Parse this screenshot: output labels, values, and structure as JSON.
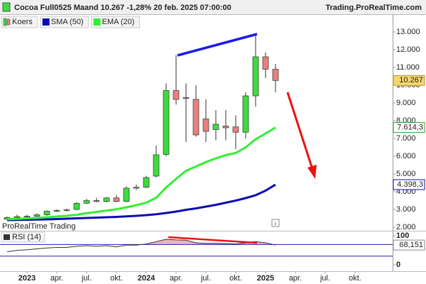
{
  "chart_data": [
    {
      "type": "candlestick",
      "title": "Cocoa Full0525 Maand 10.267 -1,28% 20 feb. 2025 07:00:00",
      "source": "Trading.ProRealTime.com",
      "watermark": "ProRealTime Trading",
      "categories": [
        null,
        null,
        "2023",
        null,
        null,
        "apr.",
        null,
        null,
        "jul.",
        null,
        null,
        "okt.",
        null,
        null,
        "2024",
        null,
        null,
        "apr.",
        null,
        null,
        "jul.",
        null,
        null,
        "okt.",
        null,
        null,
        "2025",
        null,
        null,
        "apr.",
        null,
        null,
        "jul.",
        null,
        null,
        "okt.",
        null,
        null
      ],
      "ylim": [
        1800,
        14000
      ],
      "yticks": [
        {
          "value": 2000,
          "label": "2.000"
        },
        {
          "value": 3000,
          "label": "3.000"
        },
        {
          "value": 4000,
          "label": "4.000"
        },
        {
          "value": 5000,
          "label": "5.000"
        },
        {
          "value": 6000,
          "label": "6.000"
        },
        {
          "value": 7000,
          "label": "7.000"
        },
        {
          "value": 8000,
          "label": "8.000"
        },
        {
          "value": 9000,
          "label": "9.000"
        },
        {
          "value": 10000,
          "label": "10.000"
        },
        {
          "value": 11000,
          "label": "11.000"
        },
        {
          "value": 12000,
          "label": "12.000"
        },
        {
          "value": 13000,
          "label": "13.000"
        }
      ],
      "series": [
        {
          "name": "Koers",
          "type": "candlestick",
          "up_color": "#3ddc3d",
          "down_color": "#e88080",
          "color": "#3ddc3d",
          "label_color": "#f5d76e",
          "open": [
            2450,
            2550,
            2600,
            2620,
            2700,
            2900,
            2950,
            3000,
            3350,
            3500,
            3450,
            3650,
            3450,
            4200,
            4250,
            4880,
            6100,
            9700,
            9300,
            9200,
            8100,
            7500,
            7700,
            7650,
            7350,
            9400,
            11600,
            10900,
            null,
            null,
            null,
            null,
            null,
            null,
            null,
            null,
            null,
            null
          ],
          "high": [
            2600,
            2700,
            2700,
            2780,
            2950,
            3000,
            3050,
            3400,
            3600,
            3650,
            3700,
            3800,
            4300,
            4400,
            4900,
            6600,
            10100,
            11700,
            10100,
            10000,
            9200,
            8600,
            8600,
            8300,
            9600,
            12900,
            11850,
            11200,
            null,
            null,
            null,
            null,
            null,
            null,
            null,
            null,
            null,
            null
          ],
          "low": [
            2400,
            2500,
            2550,
            2580,
            2650,
            2850,
            2880,
            2950,
            3300,
            3400,
            3400,
            3400,
            3400,
            4100,
            4200,
            4800,
            6000,
            8900,
            6800,
            7100,
            6800,
            6900,
            6900,
            6400,
            7000,
            8800,
            10400,
            9600,
            null,
            null,
            null,
            null,
            null,
            null,
            null,
            null,
            null,
            null
          ],
          "close": [
            2550,
            2600,
            2620,
            2700,
            2900,
            2950,
            2980,
            3350,
            3500,
            3450,
            3650,
            3450,
            4200,
            4250,
            4800,
            6080,
            9700,
            9200,
            9250,
            7200,
            7400,
            7800,
            7600,
            7350,
            9400,
            11600,
            10900,
            10267,
            null,
            null,
            null,
            null,
            null,
            null,
            null,
            null,
            null,
            null
          ],
          "value_label": "10.267"
        },
        {
          "name": "SMA (50)",
          "type": "line",
          "color": "#0c0cb4",
          "label_color": "#0c0cb4",
          "values": [
            2400,
            2410,
            2420,
            2430,
            2440,
            2460,
            2480,
            2500,
            2520,
            2540,
            2560,
            2580,
            2610,
            2640,
            2680,
            2730,
            2800,
            2880,
            2980,
            3060,
            3160,
            3260,
            3380,
            3500,
            3640,
            3800,
            4060,
            4398.3,
            null,
            null,
            null,
            null,
            null,
            null,
            null,
            null,
            null,
            null
          ],
          "value_label": "4.398,3"
        },
        {
          "name": "EMA (20)",
          "type": "line",
          "color": "#33ee33",
          "label_color": "#22aa22",
          "values": [
            2450,
            2470,
            2500,
            2520,
            2560,
            2600,
            2640,
            2700,
            2790,
            2860,
            2940,
            3010,
            3120,
            3240,
            3380,
            3660,
            4240,
            4720,
            5180,
            5420,
            5670,
            5880,
            6060,
            6180,
            6500,
            6950,
            7280,
            7614.3,
            null,
            null,
            null,
            null,
            null,
            null,
            null,
            null,
            null,
            null
          ],
          "value_label": "7.614,3"
        }
      ]
    },
    {
      "type": "line",
      "ylim": [
        -22,
        115
      ],
      "yticks": [
        0,
        100
      ],
      "levels": [
        70,
        30
      ],
      "level_color": "#2222aa",
      "fill_color": "#e8b8b8",
      "series": [
        {
          "name": "RSI (14)",
          "color": "#333333",
          "values": [
            45,
            50,
            52,
            55,
            58,
            60,
            60,
            64,
            66,
            64,
            66,
            62,
            68,
            68,
            72,
            80,
            88,
            86,
            85,
            76,
            74,
            74,
            73,
            72,
            76,
            80,
            76,
            68.151,
            null,
            null,
            null,
            null,
            null,
            null,
            null,
            null,
            null,
            null
          ],
          "value_label": "68,151"
        }
      ]
    }
  ]
}
